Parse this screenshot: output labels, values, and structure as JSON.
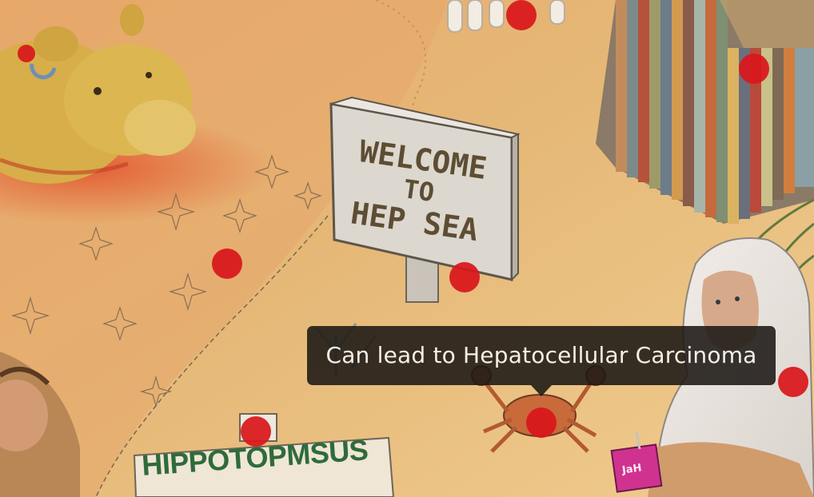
{
  "scene": {
    "welcome_sign": [
      "WELCOME",
      "TO",
      "HEP SEA"
    ],
    "bottom_sign": "HIPPOTOPMSUS",
    "juice_box_label": "JaH"
  },
  "tooltip": {
    "text": "Can lead to Hepatocellular Carcinoma"
  },
  "hotspots": [
    {
      "id": "top-center"
    },
    {
      "id": "tent"
    },
    {
      "id": "hippo-ear"
    },
    {
      "id": "sand-flowers"
    },
    {
      "id": "sign-post"
    },
    {
      "id": "crab"
    },
    {
      "id": "person-hood"
    },
    {
      "id": "small-sign"
    }
  ],
  "colors": {
    "sand": "#e9bd7b",
    "hotspot": "#d9171c",
    "tooltip_bg": "#1c1814"
  }
}
